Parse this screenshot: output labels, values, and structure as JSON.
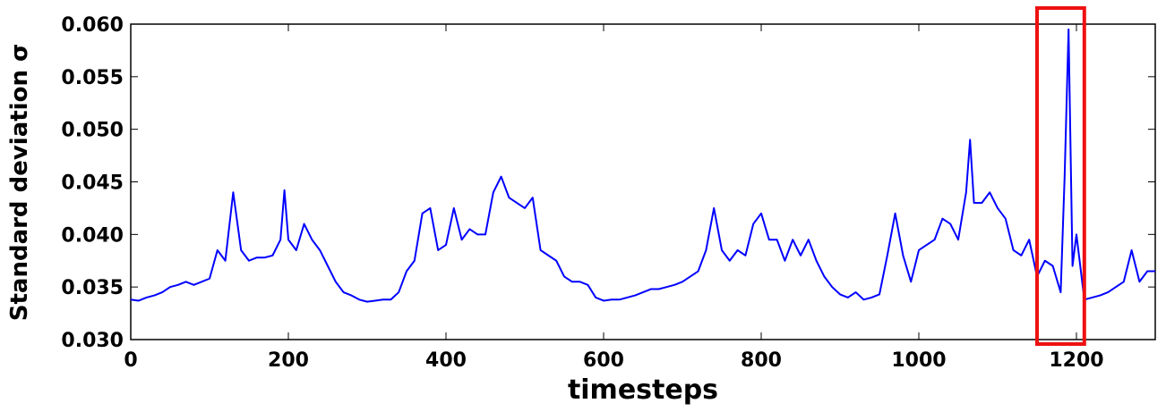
{
  "chart_data": {
    "type": "line",
    "xlabel": "timesteps",
    "ylabel": "Standard deviation σ",
    "xlim": [
      0,
      1300
    ],
    "ylim": [
      0.03,
      0.06
    ],
    "xticks": [
      0,
      200,
      400,
      600,
      800,
      1000,
      1200
    ],
    "yticks": [
      {
        "value": 0.03,
        "label": "0.030"
      },
      {
        "value": 0.035,
        "label": "0.035"
      },
      {
        "value": 0.04,
        "label": "0.040"
      },
      {
        "value": 0.045,
        "label": "0.045"
      },
      {
        "value": 0.05,
        "label": "0.050"
      },
      {
        "value": 0.055,
        "label": "0.055"
      },
      {
        "value": 0.06,
        "label": "0.060"
      }
    ],
    "highlight": {
      "xrange": [
        1150,
        1210
      ],
      "color": "#ee1111"
    },
    "x": [
      0,
      10,
      20,
      30,
      40,
      50,
      60,
      70,
      80,
      90,
      100,
      110,
      120,
      130,
      140,
      150,
      160,
      170,
      180,
      190,
      195,
      200,
      210,
      220,
      230,
      240,
      250,
      260,
      270,
      280,
      290,
      300,
      310,
      320,
      330,
      340,
      350,
      360,
      370,
      380,
      390,
      400,
      410,
      420,
      430,
      440,
      450,
      460,
      470,
      480,
      490,
      500,
      510,
      520,
      530,
      540,
      550,
      560,
      570,
      580,
      590,
      600,
      610,
      620,
      630,
      640,
      650,
      660,
      670,
      680,
      690,
      700,
      710,
      720,
      730,
      740,
      750,
      760,
      770,
      780,
      790,
      800,
      810,
      820,
      830,
      840,
      850,
      860,
      870,
      880,
      890,
      900,
      910,
      920,
      930,
      940,
      950,
      960,
      970,
      980,
      990,
      1000,
      1010,
      1020,
      1030,
      1040,
      1050,
      1060,
      1065,
      1070,
      1080,
      1090,
      1100,
      1110,
      1120,
      1130,
      1140,
      1150,
      1160,
      1170,
      1180,
      1185,
      1190,
      1195,
      1200,
      1210,
      1220,
      1230,
      1240,
      1250,
      1260,
      1270,
      1280,
      1290,
      1300
    ],
    "series": [
      {
        "color": "#0000ff",
        "values": [
          0.0338,
          0.0337,
          0.034,
          0.0342,
          0.0345,
          0.035,
          0.0352,
          0.0355,
          0.0352,
          0.0355,
          0.0358,
          0.0385,
          0.0375,
          0.044,
          0.0385,
          0.0375,
          0.0378,
          0.0378,
          0.038,
          0.0395,
          0.0442,
          0.0395,
          0.0385,
          0.041,
          0.0395,
          0.0385,
          0.037,
          0.0355,
          0.0345,
          0.0342,
          0.0338,
          0.0336,
          0.0337,
          0.0338,
          0.0338,
          0.0345,
          0.0365,
          0.0375,
          0.042,
          0.0425,
          0.0385,
          0.039,
          0.0425,
          0.0395,
          0.0405,
          0.04,
          0.04,
          0.044,
          0.0455,
          0.0435,
          0.043,
          0.0425,
          0.0435,
          0.0385,
          0.038,
          0.0375,
          0.036,
          0.0355,
          0.0355,
          0.0352,
          0.034,
          0.0337,
          0.0338,
          0.0338,
          0.034,
          0.0342,
          0.0345,
          0.0348,
          0.0348,
          0.035,
          0.0352,
          0.0355,
          0.036,
          0.0365,
          0.0385,
          0.0425,
          0.0385,
          0.0375,
          0.0385,
          0.038,
          0.041,
          0.042,
          0.0395,
          0.0395,
          0.0375,
          0.0395,
          0.038,
          0.0395,
          0.0375,
          0.036,
          0.035,
          0.0343,
          0.034,
          0.0345,
          0.0338,
          0.034,
          0.0343,
          0.038,
          0.042,
          0.038,
          0.0355,
          0.0385,
          0.039,
          0.0395,
          0.0415,
          0.041,
          0.0395,
          0.044,
          0.049,
          0.043,
          0.043,
          0.044,
          0.0425,
          0.0415,
          0.0385,
          0.038,
          0.0395,
          0.036,
          0.0375,
          0.037,
          0.0345,
          0.0455,
          0.0595,
          0.037,
          0.04,
          0.0338,
          0.034,
          0.0342,
          0.0345,
          0.035,
          0.0355,
          0.0385,
          0.0355,
          0.0365,
          0.0365
        ]
      }
    ]
  }
}
